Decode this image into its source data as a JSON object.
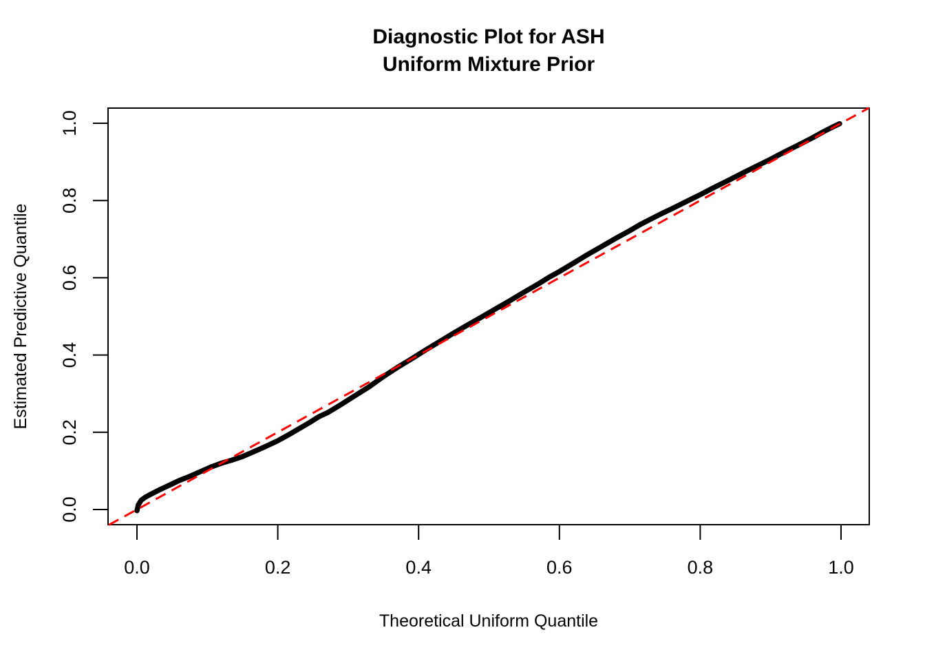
{
  "figure": {
    "background_color": "#ffffff",
    "frame_color": "#000000"
  },
  "chart_data": {
    "type": "line",
    "title": "Diagnostic Plot for ASH\nUniform Mixture Prior",
    "xlabel": "Theoretical Uniform Quantile",
    "ylabel": "Estimated Predictive Quantile",
    "xlim": [
      -0.04,
      1.04
    ],
    "ylim": [
      -0.04,
      1.04
    ],
    "grid": false,
    "legend": null,
    "x_tick_values": [
      0.0,
      0.2,
      0.4,
      0.6,
      0.8,
      1.0
    ],
    "x_tick_labels": [
      "0.0",
      "0.2",
      "0.4",
      "0.6",
      "0.8",
      "1.0"
    ],
    "y_tick_values": [
      0.0,
      0.2,
      0.4,
      0.6,
      0.8,
      1.0
    ],
    "y_tick_labels": [
      "0.0",
      "0.2",
      "0.4",
      "0.6",
      "0.8",
      "1.0"
    ],
    "series": [
      {
        "name": "estimated-predictive-quantiles",
        "style": "solid",
        "color": "#000000",
        "line_width": 7.5,
        "x": [
          0.0,
          0.002,
          0.006,
          0.012,
          0.02,
          0.032,
          0.045,
          0.06,
          0.075,
          0.09,
          0.105,
          0.12,
          0.135,
          0.15,
          0.165,
          0.18,
          0.2,
          0.215,
          0.23,
          0.245,
          0.258,
          0.272,
          0.29,
          0.31,
          0.33,
          0.35,
          0.37,
          0.39,
          0.41,
          0.43,
          0.45,
          0.47,
          0.49,
          0.51,
          0.53,
          0.55,
          0.57,
          0.585,
          0.6,
          0.62,
          0.64,
          0.66,
          0.68,
          0.7,
          0.715,
          0.73,
          0.745,
          0.76,
          0.78,
          0.8,
          0.82,
          0.84,
          0.86,
          0.88,
          0.9,
          0.92,
          0.94,
          0.96,
          0.975,
          0.99,
          0.998
        ],
        "y": [
          -0.003,
          0.012,
          0.024,
          0.032,
          0.04,
          0.051,
          0.062,
          0.075,
          0.086,
          0.098,
          0.11,
          0.12,
          0.128,
          0.137,
          0.149,
          0.161,
          0.178,
          0.193,
          0.209,
          0.225,
          0.24,
          0.252,
          0.272,
          0.295,
          0.318,
          0.344,
          0.368,
          0.39,
          0.413,
          0.435,
          0.457,
          0.478,
          0.499,
          0.52,
          0.541,
          0.563,
          0.584,
          0.601,
          0.616,
          0.638,
          0.66,
          0.681,
          0.702,
          0.722,
          0.738,
          0.752,
          0.766,
          0.779,
          0.797,
          0.815,
          0.834,
          0.852,
          0.871,
          0.889,
          0.907,
          0.926,
          0.944,
          0.963,
          0.978,
          0.992,
          0.999
        ]
      },
      {
        "name": "reference-diagonal",
        "style": "dashed",
        "color": "#ff0000",
        "line_width": 3,
        "x": [
          -0.04,
          1.04
        ],
        "y": [
          -0.04,
          1.04
        ]
      }
    ]
  }
}
